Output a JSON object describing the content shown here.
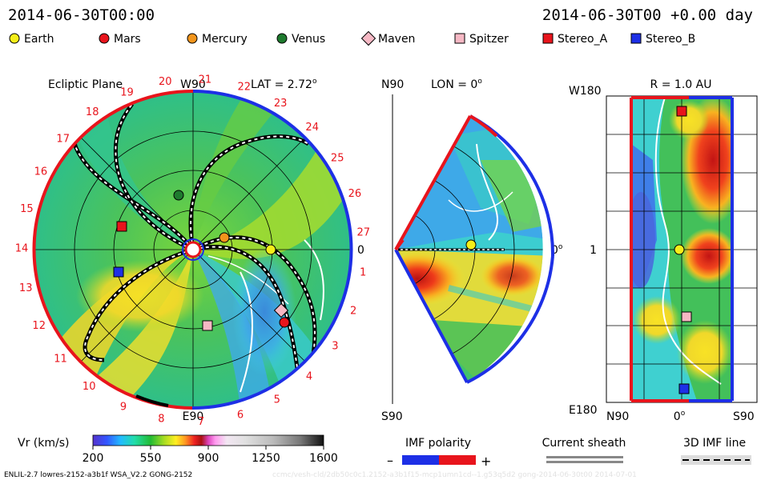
{
  "header": {
    "left_datetime": "2014-06-30T00:00",
    "right_datetime": "2014-06-30T00 +0.00 day"
  },
  "legend": [
    {
      "name": "Earth",
      "shape": "circle",
      "color": "#f5ee19"
    },
    {
      "name": "Mars",
      "shape": "circle",
      "color": "#e8141c"
    },
    {
      "name": "Mercury",
      "shape": "circle",
      "color": "#f2951c"
    },
    {
      "name": "Venus",
      "shape": "circle",
      "color": "#1e7a2e"
    },
    {
      "name": "Maven",
      "shape": "diamond",
      "color": "#f6b8c4"
    },
    {
      "name": "Spitzer",
      "shape": "square",
      "color": "#f6b8c4"
    },
    {
      "name": "Stereo_A",
      "shape": "square",
      "color": "#e8141c"
    },
    {
      "name": "Stereo_B",
      "shape": "square",
      "color": "#1d2fe6"
    }
  ],
  "panel_ecliptic": {
    "title": "Ecliptic Plane",
    "top_label": "W90",
    "bottom_label": "E90",
    "right_label": "0",
    "lat_text": "LAT = 2.72",
    "lat_sup": "o",
    "carrington_numbers": [
      "1",
      "2",
      "3",
      "4",
      "5",
      "6",
      "7",
      "8",
      "9",
      "10",
      "11",
      "12",
      "13",
      "14",
      "15",
      "16",
      "17",
      "18",
      "19",
      "20",
      "21",
      "22",
      "23",
      "24",
      "25",
      "26",
      "27"
    ]
  },
  "panel_meridional": {
    "top_label": "N90",
    "bottom_label": "S90",
    "lon_text": "LON = 0",
    "lon_sup": "o",
    "right_label": "0",
    "right_sup": "o"
  },
  "panel_radial": {
    "title": "R = 1.0 AU",
    "top_left": "W180",
    "bottom_left": "E180",
    "mid_left": "1",
    "x_labels": [
      "N90",
      "0",
      "S90"
    ],
    "x_mid_sup": "o"
  },
  "colorbar": {
    "label": "Vr (km/s)",
    "ticks": [
      "200",
      "550",
      "900",
      "1250",
      "1600"
    ],
    "min": 200,
    "max": 1600
  },
  "imf_legend": {
    "title": "IMF polarity",
    "minus": "–",
    "plus": "+",
    "negative_color": "#1d2fe6",
    "positive_color": "#e8141c"
  },
  "sheath_legend": {
    "title": "Current sheath"
  },
  "imf_line_legend": {
    "title": "3D IMF line"
  },
  "footer": {
    "model": "ENLIL-2.7 lowres-2152-a3b1f WSA_V2.2 GONG-2152",
    "watermark": "ccmc/vesh-cld/2db50c0c1.2152-a3b1f15-mcp1umn1cd--1.g53q5d2 gong-2014-06-30t00   2014-07-01"
  }
}
